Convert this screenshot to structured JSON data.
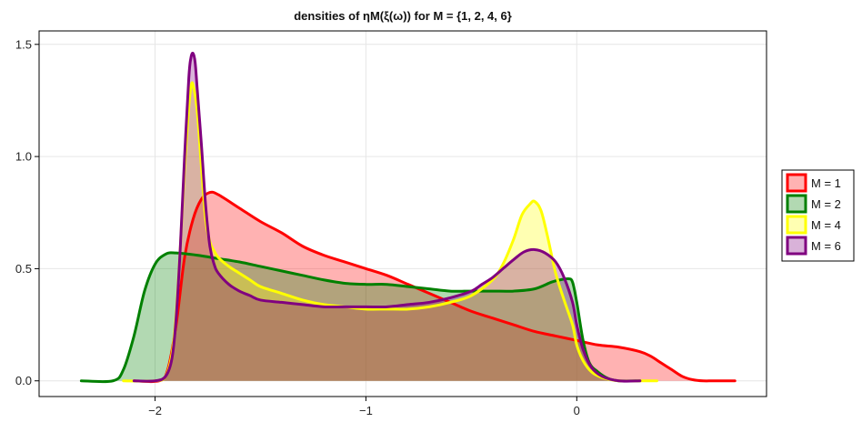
{
  "chart_data": {
    "type": "area",
    "title": "densities of ηM(ξ(ω)) for M = {1, 2, 4, 6}",
    "xlabel": "",
    "ylabel": "",
    "xlim": [
      -2.55,
      0.9
    ],
    "ylim": [
      -0.07,
      1.56
    ],
    "xticks": [
      -2,
      -1,
      0
    ],
    "xtick_labels": [
      "−2",
      "−1",
      "0"
    ],
    "yticks": [
      0.0,
      0.5,
      1.0,
      1.5
    ],
    "ytick_labels": [
      "0.0",
      "0.5",
      "1.0",
      "1.5"
    ],
    "grid": true,
    "legend": "right",
    "series": [
      {
        "name": "M = 1",
        "color": "#ff0000",
        "x": [
          -2.1,
          -1.98,
          -1.94,
          -1.9,
          -1.86,
          -1.82,
          -1.78,
          -1.74,
          -1.7,
          -1.6,
          -1.5,
          -1.4,
          -1.3,
          -1.2,
          -1.1,
          -1.0,
          -0.9,
          -0.8,
          -0.7,
          -0.6,
          -0.5,
          -0.4,
          -0.3,
          -0.2,
          -0.1,
          0.0,
          0.1,
          0.2,
          0.3,
          0.35,
          0.4,
          0.45,
          0.5,
          0.55,
          0.6,
          0.65,
          0.75
        ],
        "y": [
          0.0,
          0.0,
          0.05,
          0.25,
          0.55,
          0.72,
          0.81,
          0.84,
          0.83,
          0.77,
          0.71,
          0.66,
          0.6,
          0.56,
          0.53,
          0.5,
          0.47,
          0.43,
          0.39,
          0.35,
          0.31,
          0.28,
          0.25,
          0.22,
          0.2,
          0.18,
          0.16,
          0.15,
          0.13,
          0.11,
          0.08,
          0.05,
          0.02,
          0.005,
          0.0,
          0.0,
          0.0
        ]
      },
      {
        "name": "M = 2",
        "color": "#008000",
        "x": [
          -2.35,
          -2.2,
          -2.15,
          -2.1,
          -2.05,
          -2.0,
          -1.95,
          -1.9,
          -1.8,
          -1.7,
          -1.6,
          -1.5,
          -1.4,
          -1.3,
          -1.2,
          -1.1,
          -1.0,
          -0.9,
          -0.8,
          -0.7,
          -0.6,
          -0.5,
          -0.4,
          -0.3,
          -0.2,
          -0.12,
          -0.08,
          -0.04,
          -0.02,
          0.0,
          0.03,
          0.06,
          0.1,
          0.15,
          0.2,
          0.3
        ],
        "y": [
          0.0,
          0.0,
          0.05,
          0.2,
          0.4,
          0.52,
          0.565,
          0.57,
          0.56,
          0.545,
          0.53,
          0.51,
          0.49,
          0.47,
          0.45,
          0.435,
          0.43,
          0.43,
          0.42,
          0.41,
          0.4,
          0.4,
          0.4,
          0.4,
          0.41,
          0.44,
          0.45,
          0.455,
          0.44,
          0.35,
          0.18,
          0.08,
          0.04,
          0.01,
          0.0,
          0.0
        ]
      },
      {
        "name": "M = 4",
        "color": "#ffff00",
        "x": [
          -2.15,
          -2.0,
          -1.95,
          -1.92,
          -1.9,
          -1.88,
          -1.86,
          -1.84,
          -1.83,
          -1.82,
          -1.8,
          -1.78,
          -1.76,
          -1.74,
          -1.72,
          -1.7,
          -1.65,
          -1.6,
          -1.55,
          -1.5,
          -1.4,
          -1.3,
          -1.2,
          -1.1,
          -1.0,
          -0.9,
          -0.8,
          -0.7,
          -0.6,
          -0.5,
          -0.4,
          -0.35,
          -0.3,
          -0.26,
          -0.22,
          -0.2,
          -0.17,
          -0.14,
          -0.1,
          -0.06,
          -0.02,
          0.0,
          0.03,
          0.07,
          0.12,
          0.2,
          0.3,
          0.38
        ],
        "y": [
          0.0,
          0.0,
          0.02,
          0.12,
          0.3,
          0.6,
          0.95,
          1.22,
          1.31,
          1.32,
          1.2,
          0.95,
          0.72,
          0.62,
          0.58,
          0.55,
          0.51,
          0.48,
          0.45,
          0.42,
          0.39,
          0.36,
          0.34,
          0.33,
          0.32,
          0.32,
          0.32,
          0.33,
          0.35,
          0.38,
          0.45,
          0.52,
          0.63,
          0.74,
          0.79,
          0.8,
          0.76,
          0.65,
          0.48,
          0.36,
          0.25,
          0.16,
          0.09,
          0.04,
          0.015,
          0.0,
          0.0,
          0.0
        ]
      },
      {
        "name": "M = 6",
        "color": "#800080",
        "x": [
          -2.1,
          -2.0,
          -1.95,
          -1.92,
          -1.9,
          -1.88,
          -1.86,
          -1.84,
          -1.83,
          -1.82,
          -1.81,
          -1.8,
          -1.78,
          -1.76,
          -1.74,
          -1.72,
          -1.7,
          -1.65,
          -1.6,
          -1.55,
          -1.5,
          -1.4,
          -1.3,
          -1.2,
          -1.1,
          -1.0,
          -0.9,
          -0.8,
          -0.7,
          -0.6,
          -0.5,
          -0.45,
          -0.4,
          -0.35,
          -0.3,
          -0.25,
          -0.2,
          -0.15,
          -0.1,
          -0.06,
          -0.02,
          0.0,
          0.03,
          0.07,
          0.12,
          0.2,
          0.3
        ],
        "y": [
          0.0,
          0.0,
          0.02,
          0.1,
          0.28,
          0.6,
          1.0,
          1.35,
          1.44,
          1.46,
          1.42,
          1.3,
          1.05,
          0.78,
          0.6,
          0.52,
          0.48,
          0.43,
          0.4,
          0.38,
          0.36,
          0.35,
          0.34,
          0.33,
          0.33,
          0.33,
          0.33,
          0.34,
          0.35,
          0.37,
          0.4,
          0.43,
          0.46,
          0.5,
          0.54,
          0.575,
          0.585,
          0.57,
          0.53,
          0.46,
          0.35,
          0.25,
          0.14,
          0.06,
          0.02,
          0.0,
          0.0
        ]
      }
    ]
  }
}
